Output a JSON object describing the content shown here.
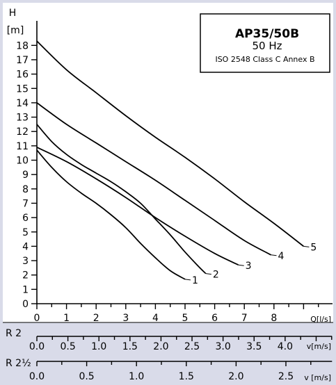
{
  "chart_data": {
    "type": "line",
    "title": "AP35/50B",
    "subtitle": "50 Hz",
    "note": "ISO 2548 Class C Annex B",
    "ylabel_top": "H",
    "ylabel_unit": "[m]",
    "xlabel": "Q[l/s]",
    "xlim": [
      0,
      10
    ],
    "ylim": [
      0,
      19
    ],
    "grid": false,
    "x_ticks": [
      0,
      1,
      2,
      3,
      4,
      5,
      6,
      7,
      8
    ],
    "y_ticks": [
      0,
      1,
      2,
      3,
      4,
      5,
      6,
      7,
      8,
      9,
      10,
      11,
      12,
      13,
      14,
      15,
      16,
      17,
      18
    ],
    "series": [
      {
        "name": "1",
        "x": [
          0,
          0.5,
          1,
          1.5,
          2,
          2.5,
          3,
          3.5,
          4,
          4.5,
          5
        ],
        "y": [
          10.7,
          9.5,
          8.5,
          7.7,
          7.0,
          6.2,
          5.3,
          4.2,
          3.2,
          2.3,
          1.7
        ]
      },
      {
        "name": "2",
        "x": [
          0,
          0.5,
          1,
          1.5,
          2,
          2.5,
          3,
          3.5,
          4,
          4.5,
          5,
          5.5,
          5.7
        ],
        "y": [
          12.5,
          11.3,
          10.4,
          9.7,
          9.1,
          8.5,
          7.8,
          7.0,
          5.9,
          4.8,
          3.6,
          2.5,
          2.1
        ]
      },
      {
        "name": "3",
        "x": [
          0,
          1,
          2,
          3,
          4,
          5,
          6,
          6.8
        ],
        "y": [
          10.9,
          9.9,
          8.7,
          7.4,
          6.0,
          4.7,
          3.5,
          2.7
        ]
      },
      {
        "name": "4",
        "x": [
          0,
          1,
          2,
          3,
          4,
          5,
          6,
          7,
          7.9
        ],
        "y": [
          14.0,
          12.5,
          11.2,
          9.9,
          8.6,
          7.2,
          5.8,
          4.4,
          3.4
        ]
      },
      {
        "name": "5",
        "x": [
          0,
          1,
          2,
          3,
          4,
          5,
          6,
          7,
          8,
          9
        ],
        "y": [
          18.3,
          16.3,
          14.7,
          13.1,
          11.6,
          10.2,
          8.7,
          7.1,
          5.6,
          4.0
        ]
      }
    ],
    "scale_r2": {
      "label": "R 2",
      "unit": "v[m/s]",
      "tick_labels": [
        "0.0",
        "0.5",
        "1.0",
        "1.5",
        "2.0",
        "2.5",
        "3.0",
        "3.5",
        "4.0"
      ],
      "values": [
        0.0,
        0.5,
        1.0,
        1.5,
        2.0,
        2.5,
        3.0,
        3.5,
        4.0
      ],
      "v_per_q": 0.4775
    },
    "scale_r2_5": {
      "label": "R 2½",
      "unit": "v [m/s]",
      "tick_labels": [
        "0.0",
        "0.5",
        "1.0",
        "1.5",
        "2.0",
        "2.5"
      ],
      "values": [
        0.0,
        0.5,
        1.0,
        1.5,
        2.0,
        2.5
      ],
      "v_per_q": 0.2975
    }
  }
}
